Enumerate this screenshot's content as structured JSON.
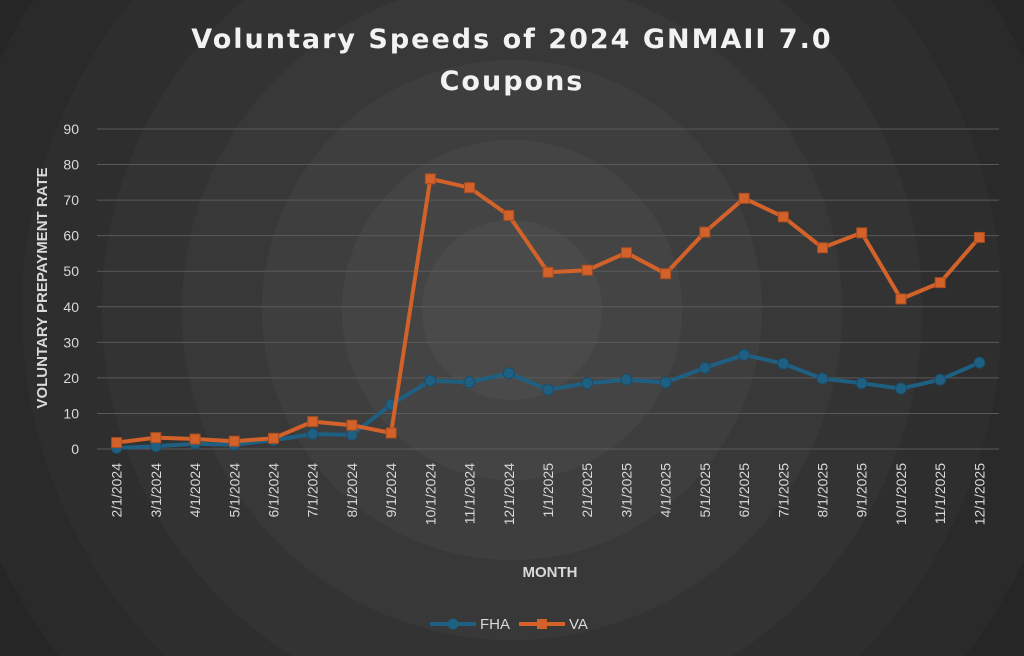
{
  "chart_data": {
    "type": "line",
    "title_lines": [
      "Voluntary Speeds of 2024 GNMAII 7.0",
      "Coupons"
    ],
    "xlabel": "MONTH",
    "ylabel": "VOLUNTARY PREPAYMENT RATE",
    "ylim": [
      0,
      90
    ],
    "yticks": [
      "0",
      "10",
      "20",
      "30",
      "40",
      "50",
      "60",
      "70",
      "80",
      "90"
    ],
    "grid": true,
    "legend_position": "bottom",
    "categories": [
      "2/1/2024",
      "3/1/2024",
      "4/1/2024",
      "5/1/2024",
      "6/1/2024",
      "7/1/2024",
      "8/1/2024",
      "9/1/2024",
      "10/1/2024",
      "11/1/2024",
      "12/1/2024",
      "1/1/2025",
      "2/1/2025",
      "3/1/2025",
      "4/1/2025",
      "5/1/2025",
      "6/1/2025",
      "7/1/2025",
      "8/1/2025",
      "9/1/2025",
      "10/1/2025",
      "11/1/2025",
      "12/1/2025"
    ],
    "series": [
      {
        "name": "FHA",
        "color": "#1f5f82",
        "marker": "circle",
        "values": [
          0.3,
          0.8,
          1.5,
          1.2,
          2.5,
          4.2,
          4.0,
          12.5,
          19.2,
          18.8,
          21.3,
          16.7,
          18.5,
          19.5,
          18.7,
          22.8,
          26.5,
          24.0,
          19.8,
          18.5,
          17.0,
          19.5,
          24.3
        ]
      },
      {
        "name": "VA",
        "color": "#d2622a",
        "marker": "square",
        "values": [
          1.8,
          3.2,
          2.8,
          2.2,
          3.0,
          7.7,
          6.7,
          4.5,
          76.0,
          73.5,
          65.7,
          49.7,
          50.3,
          55.2,
          49.3,
          61.0,
          70.5,
          65.3,
          56.6,
          60.8,
          42.2,
          46.8,
          59.5
        ]
      }
    ]
  }
}
